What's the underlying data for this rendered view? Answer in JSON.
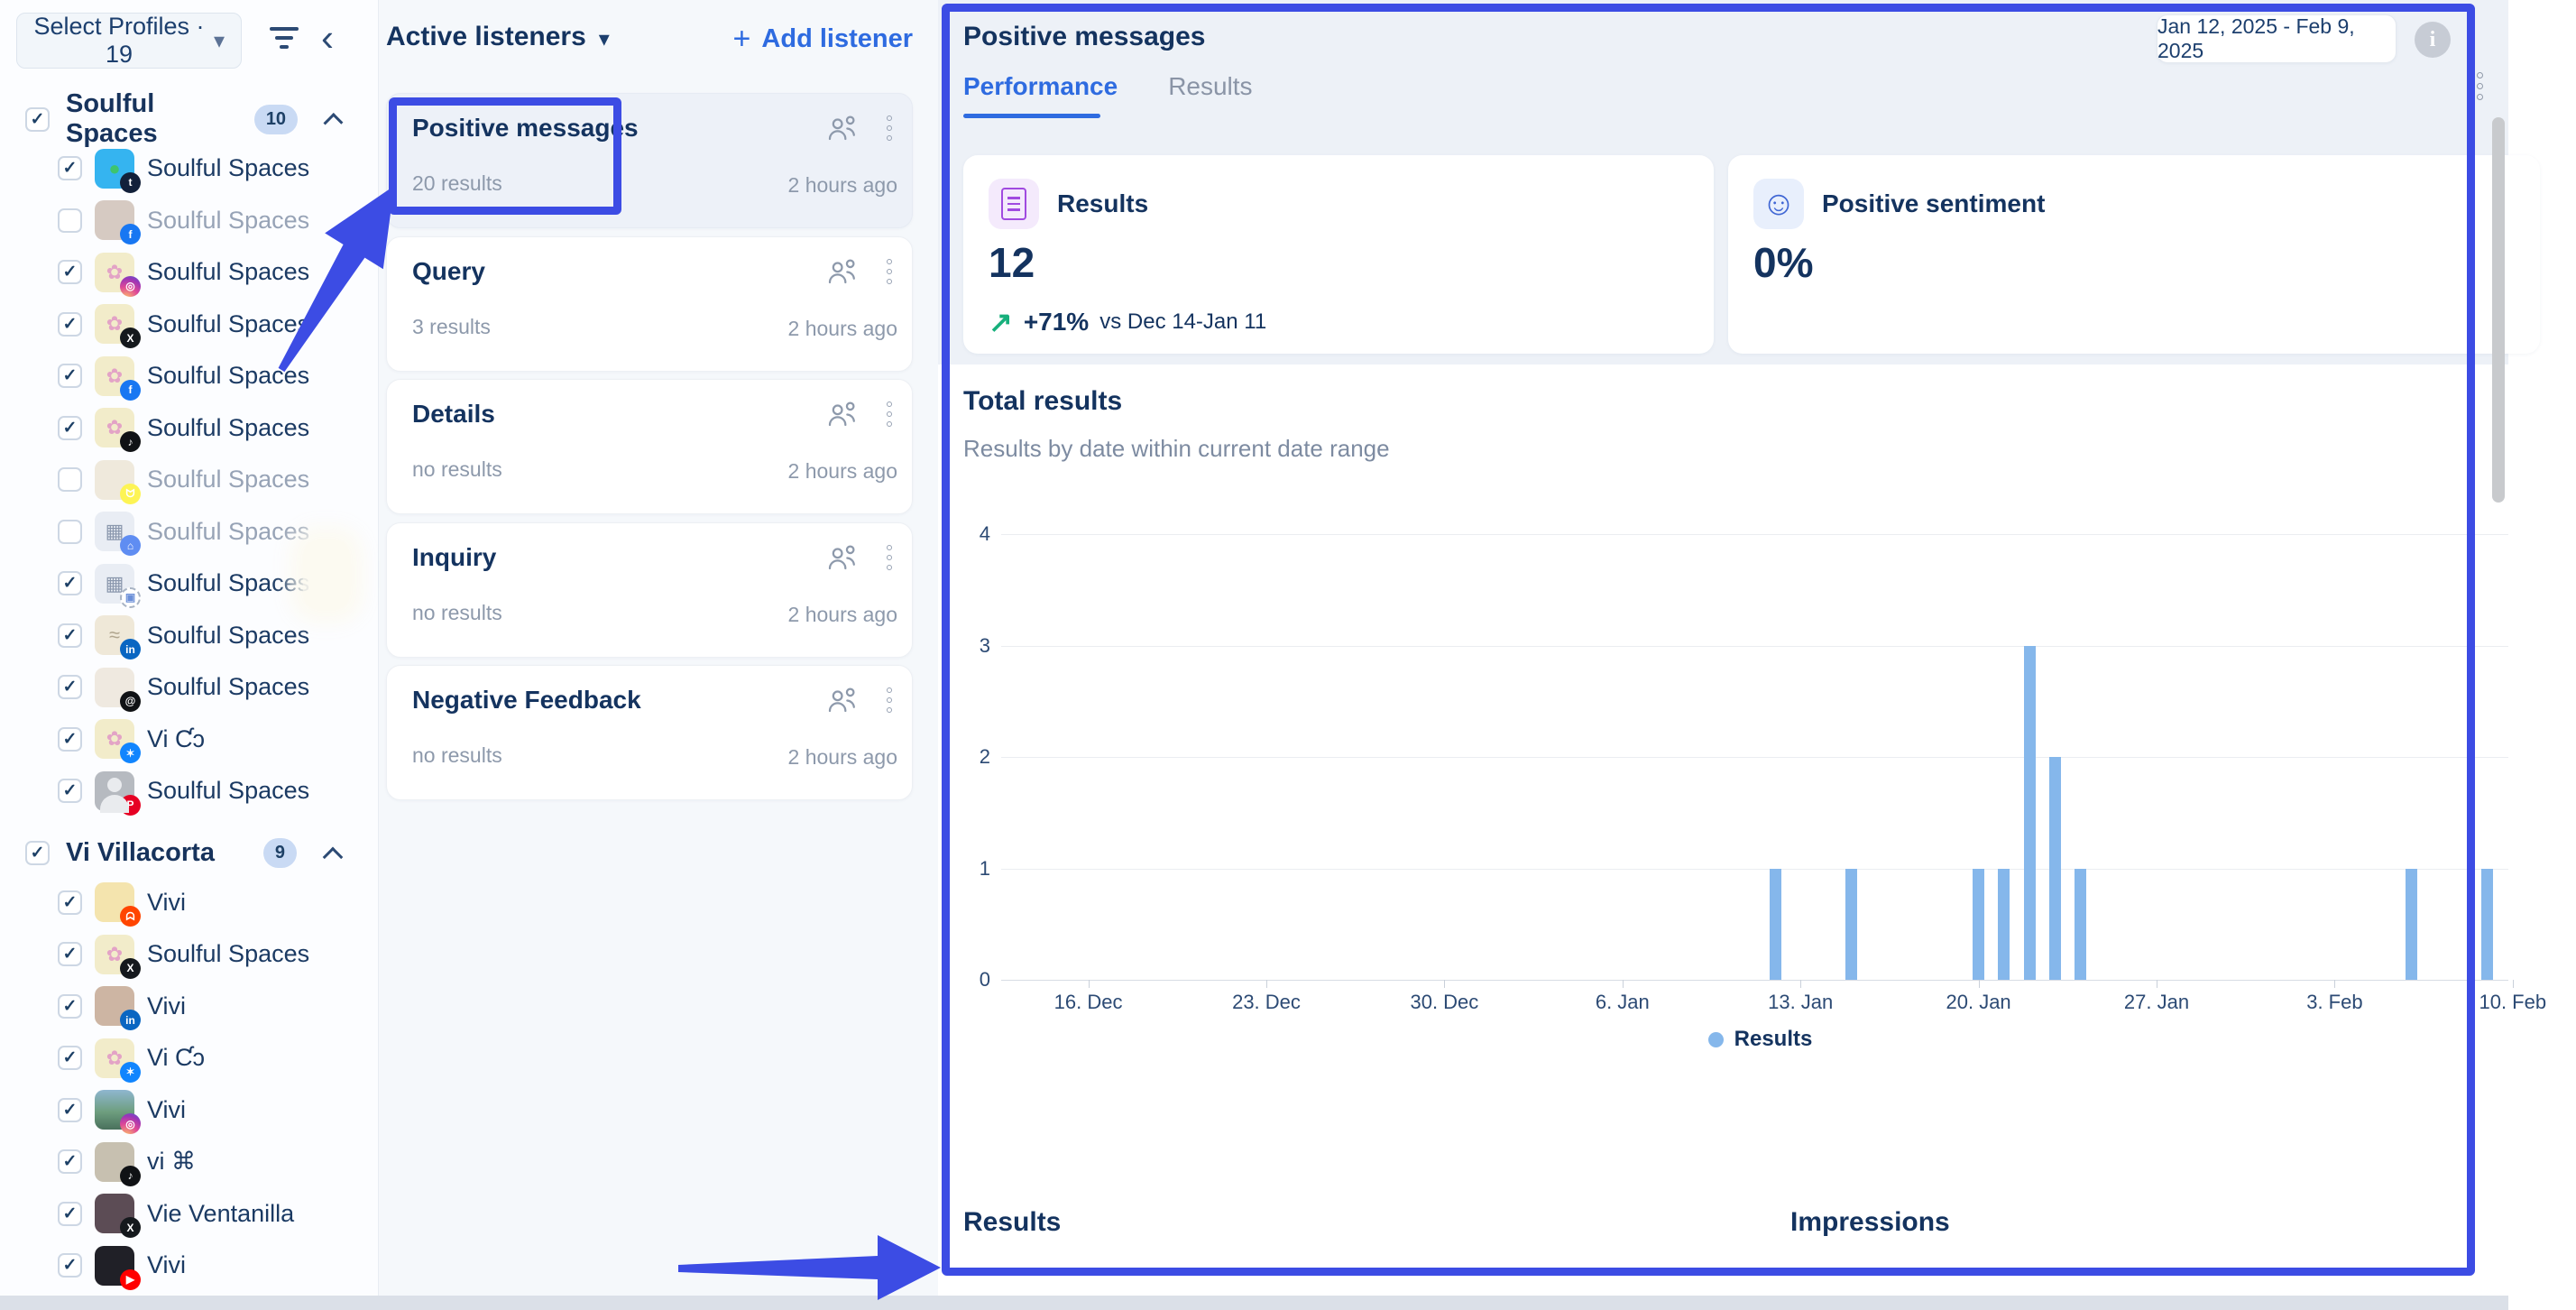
{
  "colors": {
    "accent_blue": "#2e6be0",
    "annotation_blue": "#3c4ce4",
    "bar_blue": "#85b7eb",
    "navy": "#16355e",
    "positive_green": "#17b07c",
    "selected_card_bg": "#edf1f8"
  },
  "profiles_panel": {
    "select_button": "Select Profiles · 19",
    "groups": [
      {
        "name": "Soulful Spaces",
        "badge": "10",
        "checked": true,
        "items": [
          {
            "label": "Soulful Spaces",
            "checked": true,
            "muted": false,
            "avatar": {
              "color": "#35b4f0",
              "glyph": "●",
              "glyph_color": "#3ec46d"
            },
            "badge": {
              "name": "tumblr",
              "color": "#12203a",
              "glyph": "t"
            }
          },
          {
            "label": "Soulful Spaces",
            "checked": false,
            "muted": true,
            "avatar": {
              "color": "#d6cac2",
              "glyph": "",
              "glyph_color": ""
            },
            "badge": {
              "name": "facebook",
              "color": "#1877f2",
              "glyph": "f"
            }
          },
          {
            "label": "Soulful Spaces",
            "checked": true,
            "muted": false,
            "avatar": {
              "color": "#f2ecca",
              "glyph": "✿",
              "glyph_color": "#e3a3c6"
            },
            "badge": {
              "name": "instagram",
              "color": "ig",
              "glyph": "◎"
            }
          },
          {
            "label": "Soulful Spaces",
            "checked": true,
            "muted": false,
            "avatar": {
              "color": "#f2ecca",
              "glyph": "✿",
              "glyph_color": "#e3a3c6"
            },
            "badge": {
              "name": "x",
              "color": "#15191d",
              "glyph": "X"
            }
          },
          {
            "label": "Soulful Spaces",
            "checked": true,
            "muted": false,
            "avatar": {
              "color": "#f2ecca",
              "glyph": "✿",
              "glyph_color": "#e3a3c6"
            },
            "badge": {
              "name": "facebook",
              "color": "#1877f2",
              "glyph": "f"
            }
          },
          {
            "label": "Soulful Spaces",
            "checked": true,
            "muted": false,
            "avatar": {
              "color": "#f2ecca",
              "glyph": "✿",
              "glyph_color": "#e3a3c6"
            },
            "badge": {
              "name": "tiktok",
              "color": "#101215",
              "glyph": "♪"
            }
          },
          {
            "label": "Soulful Spaces",
            "checked": false,
            "muted": true,
            "avatar": {
              "color": "#efe9dc",
              "glyph": "",
              "glyph_color": ""
            },
            "badge": {
              "name": "snapchat",
              "color": "#fdf455",
              "glyph": "ᗢ"
            }
          },
          {
            "label": "Soulful Spaces",
            "checked": false,
            "muted": true,
            "avatar": {
              "color": "#e9edf4",
              "glyph": "▦",
              "glyph_color": "#8a97ad"
            },
            "badge": {
              "name": "google-business",
              "color": "#5f8df2",
              "glyph": "⌂"
            }
          },
          {
            "label": "Soulful Spaces",
            "checked": true,
            "muted": false,
            "avatar": {
              "color": "#e9edf4",
              "glyph": "▦",
              "glyph_color": "#8a97ad"
            },
            "badge": {
              "name": "pending",
              "color": "dash",
              "glyph": "▣",
              "glyph_color": "#6b8fd8"
            }
          },
          {
            "label": "Soulful Spaces",
            "checked": true,
            "muted": false,
            "avatar": {
              "color": "#efe8d8",
              "glyph": "≈",
              "glyph_color": "#b0a58e"
            },
            "badge": {
              "name": "linkedin",
              "color": "#0a66c2",
              "glyph": "in"
            }
          },
          {
            "label": "Soulful Spaces",
            "checked": true,
            "muted": false,
            "avatar": {
              "color": "#efe9e0",
              "glyph": "",
              "glyph_color": ""
            },
            "badge": {
              "name": "threads",
              "color": "#101215",
              "glyph": "@"
            }
          },
          {
            "label": "Vi Ƈɔ",
            "checked": true,
            "muted": false,
            "avatar": {
              "color": "#f2ecca",
              "glyph": "✿",
              "glyph_color": "#e3a3c6"
            },
            "badge": {
              "name": "bluesky",
              "color": "#1185fe",
              "glyph": "✶"
            }
          },
          {
            "label": "Soulful Spaces",
            "checked": true,
            "muted": false,
            "avatar": {
              "color": "#b6bac0",
              "glyph": "person-icon",
              "glyph_color": ""
            },
            "badge": {
              "name": "pinterest",
              "color": "#e60023",
              "glyph": "P"
            }
          }
        ]
      },
      {
        "name": "Vi Villacorta",
        "badge": "9",
        "checked": true,
        "items": [
          {
            "label": "Vivi",
            "checked": true,
            "muted": false,
            "avatar": {
              "color": "#f4e4ae",
              "glyph": "",
              "glyph_color": ""
            },
            "badge": {
              "name": "reddit",
              "color": "#ff4500",
              "glyph": "ᗣ"
            }
          },
          {
            "label": "Soulful Spaces",
            "checked": true,
            "muted": false,
            "avatar": {
              "color": "#f2ecca",
              "glyph": "✿",
              "glyph_color": "#e3a3c6"
            },
            "badge": {
              "name": "x",
              "color": "#15191d",
              "glyph": "X"
            }
          },
          {
            "label": "Vivi",
            "checked": true,
            "muted": false,
            "avatar": {
              "color": "#cdb5a3",
              "glyph": "",
              "glyph_color": ""
            },
            "badge": {
              "name": "linkedin",
              "color": "#0a66c2",
              "glyph": "in"
            }
          },
          {
            "label": "Vi Ƈɔ",
            "checked": true,
            "muted": false,
            "avatar": {
              "color": "#f2ecca",
              "glyph": "✿",
              "glyph_color": "#e3a3c6"
            },
            "badge": {
              "name": "bluesky",
              "color": "#1185fe",
              "glyph": "✶"
            }
          },
          {
            "label": "Vivi",
            "checked": true,
            "muted": false,
            "avatar": {
              "color": "linear-gradient(180deg,#8fb7d0 0%,#6e9e7f 55%,#49705c 100%)",
              "glyph": "",
              "glyph_color": ""
            },
            "badge": {
              "name": "instagram",
              "color": "ig",
              "glyph": "◎"
            }
          },
          {
            "label": "vi ⌘",
            "checked": true,
            "muted": false,
            "avatar": {
              "color": "#c7c0b0",
              "glyph": "",
              "glyph_color": ""
            },
            "badge": {
              "name": "tiktok",
              "color": "#101215",
              "glyph": "♪"
            }
          },
          {
            "label": "Vie Ventanilla",
            "checked": true,
            "muted": false,
            "avatar": {
              "color": "#5c4c55",
              "glyph": "",
              "glyph_color": ""
            },
            "badge": {
              "name": "x",
              "color": "#15191d",
              "glyph": "X"
            }
          },
          {
            "label": "Vivi",
            "checked": true,
            "muted": false,
            "avatar": {
              "color": "#202027",
              "glyph": "",
              "glyph_color": ""
            },
            "badge": {
              "name": "youtube",
              "color": "#ff0000",
              "glyph": "▶"
            }
          }
        ]
      }
    ]
  },
  "listeners_panel": {
    "title": "Active listeners",
    "add_label": "Add listener",
    "cards": [
      {
        "title": "Positive messages",
        "results": "20 results",
        "time": "2 hours ago",
        "selected": true
      },
      {
        "title": "Query",
        "results": "3 results",
        "time": "2 hours ago",
        "selected": false
      },
      {
        "title": "Details",
        "results": "no results",
        "time": "2 hours ago",
        "selected": false
      },
      {
        "title": "Inquiry",
        "results": "no results",
        "time": "2 hours ago",
        "selected": false
      },
      {
        "title": "Negative Feedback",
        "results": "no results",
        "time": "2 hours ago",
        "selected": false
      }
    ]
  },
  "detail_panel": {
    "title": "Positive messages",
    "date_range": "Jan 12, 2025 - Feb 9, 2025",
    "tabs": [
      "Performance",
      "Results"
    ],
    "active_tab": "Performance",
    "metrics": [
      {
        "icon": "document-icon",
        "icon_bg": "#f4eafc",
        "label": "Results",
        "value": "12",
        "delta": "+71%",
        "delta_note": "vs Dec 14-Jan 11",
        "trend": "up"
      },
      {
        "icon": "smiley-icon",
        "icon_bg": "#e8effc",
        "label": "Positive sentiment",
        "value": "0%"
      }
    ],
    "bottom": {
      "left_title": "Results",
      "right_title": "Impressions"
    }
  },
  "chart_data": {
    "type": "bar",
    "title": "Total results",
    "subtitle": "Results by date within current date range",
    "xlabel": "",
    "ylabel": "",
    "ylim": [
      0,
      4
    ],
    "y_ticks": [
      0,
      1,
      2,
      3,
      4
    ],
    "grid": true,
    "legend_position": "bottom",
    "bar_color": "#85b7eb",
    "legend": [
      {
        "label": "Results",
        "color": "#85b7eb"
      }
    ],
    "day0": "2024-12-13",
    "x_ticks": [
      {
        "label": "16. Dec",
        "day": 3
      },
      {
        "label": "23. Dec",
        "day": 10
      },
      {
        "label": "30. Dec",
        "day": 17
      },
      {
        "label": "6. Jan",
        "day": 24
      },
      {
        "label": "13. Jan",
        "day": 31
      },
      {
        "label": "20. Jan",
        "day": 38
      },
      {
        "label": "27. Jan",
        "day": 45
      },
      {
        "label": "3. Feb",
        "day": 52
      },
      {
        "label": "10. Feb",
        "day": 59
      }
    ],
    "bars": [
      {
        "date": "2025-01-12",
        "day": 30,
        "value": 1
      },
      {
        "date": "2025-01-15",
        "day": 33,
        "value": 1
      },
      {
        "date": "2025-01-20",
        "day": 38,
        "value": 1
      },
      {
        "date": "2025-01-21",
        "day": 39,
        "value": 1
      },
      {
        "date": "2025-01-22",
        "day": 40,
        "value": 3
      },
      {
        "date": "2025-01-23",
        "day": 41,
        "value": 2
      },
      {
        "date": "2025-01-24",
        "day": 42,
        "value": 1
      },
      {
        "date": "2025-02-06",
        "day": 55,
        "value": 1
      },
      {
        "date": "2025-02-09",
        "day": 58,
        "value": 1
      }
    ]
  }
}
